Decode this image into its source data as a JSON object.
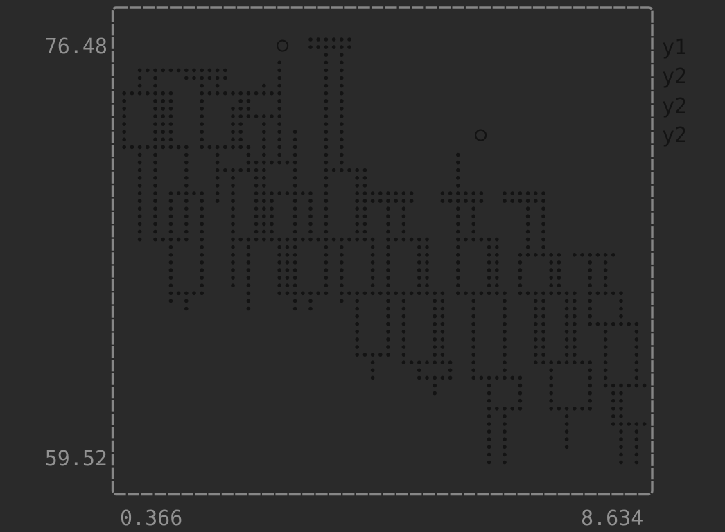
{
  "figure": {
    "background": "#2a2a2a",
    "border_color": "#868686",
    "label_color": "#919191",
    "dot_color": "#131313"
  },
  "axis": {
    "y_top_label": "76.48",
    "y_bottom_label": "59.52",
    "x_left_label": "0.366",
    "x_right_label": "8.634"
  },
  "legend": {
    "items": [
      {
        "label": "y1"
      },
      {
        "label": "y2"
      },
      {
        "label": "y2"
      },
      {
        "label": "y2"
      }
    ]
  },
  "chart_data": {
    "type": "candlestick",
    "title": "",
    "xlabel": "",
    "ylabel": "",
    "xlim": [
      0.366,
      8.634
    ],
    "ylim": [
      59.52,
      76.48
    ],
    "x_tick_labels": [
      "0.366",
      "8.634"
    ],
    "y_tick_labels": [
      "76.48",
      "59.52"
    ],
    "legend_entries": [
      "y1",
      "y2",
      "y2",
      "y2"
    ],
    "grid": false,
    "legend_position": "right-outside",
    "style": "terminal-dot-matrix",
    "series": [
      {
        "name": "y1",
        "dx": -0.33,
        "half": 0.28,
        "candles": [
          {
            "x": 1.15,
            "o": 74.5,
            "c": 72.4,
            "h": 75.5,
            "l": 68.5
          },
          {
            "x": 2.1,
            "o": 75.4,
            "c": 75.2,
            "h": 75.5,
            "l": 72.4
          },
          {
            "x": 3.0,
            "o": 74.6,
            "c": 73.4,
            "h": 74.9,
            "l": 71.5
          },
          {
            "x": 4.0,
            "o": 76.6,
            "c": 76.4,
            "h": 76.7,
            "l": 71.2
          },
          {
            "x": 4.95,
            "o": 70.3,
            "c": 70.1,
            "h": 70.4,
            "l": 68.5
          },
          {
            "x": 6.0,
            "o": 70.3,
            "c": 70.1,
            "h": 72.1,
            "l": 68.5
          },
          {
            "x": 7.0,
            "o": 70.3,
            "c": 70.1,
            "h": 70.4,
            "l": 68.0
          },
          {
            "x": 8.0,
            "o": 67.9,
            "c": 67.7,
            "h": 68.0,
            "l": 66.4
          }
        ]
      },
      {
        "name": "y2",
        "dx": -0.11,
        "half": 0.28,
        "candles": [
          {
            "x": 1.15,
            "o": 75.5,
            "c": 75.3,
            "h": 75.6,
            "l": 72.4
          },
          {
            "x": 2.1,
            "o": 74.5,
            "c": 72.4,
            "h": 75.4,
            "l": 70.0
          },
          {
            "x": 3.0,
            "o": 71.5,
            "c": 68.5,
            "h": 75.7,
            "l": 66.4
          },
          {
            "x": 4.0,
            "o": 71.2,
            "c": 68.4,
            "h": 76.4,
            "l": 66.0
          },
          {
            "x": 4.95,
            "o": 68.5,
            "c": 66.4,
            "h": 70.3,
            "l": 64.0
          },
          {
            "x": 6.0,
            "o": 68.5,
            "c": 66.4,
            "h": 70.3,
            "l": 62.7
          },
          {
            "x": 7.0,
            "o": 68.0,
            "c": 66.4,
            "h": 70.3,
            "l": 63.5
          },
          {
            "x": 8.0,
            "o": 66.4,
            "c": 64.9,
            "h": 67.9,
            "l": 62.5
          }
        ]
      },
      {
        "name": "y2",
        "dx": 0.11,
        "half": 0.28,
        "candles": [
          {
            "x": 1.15,
            "o": 72.4,
            "c": 68.5,
            "h": 74.5,
            "l": 65.8
          },
          {
            "x": 2.1,
            "o": 72.4,
            "c": 71.2,
            "h": 74.0,
            "l": 66.5
          },
          {
            "x": 3.0,
            "o": 70.3,
            "c": 68.5,
            "h": 73.0,
            "l": 65.7
          },
          {
            "x": 4.0,
            "o": 68.4,
            "c": 66.3,
            "h": 71.2,
            "l": 63.6
          },
          {
            "x": 4.95,
            "o": 66.4,
            "c": 63.5,
            "h": 68.5,
            "l": 62.7
          },
          {
            "x": 6.0,
            "o": 66.4,
            "c": 62.7,
            "h": 68.5,
            "l": 59.4
          },
          {
            "x": 7.0,
            "o": 66.4,
            "c": 63.5,
            "h": 68.0,
            "l": 61.5
          },
          {
            "x": 8.0,
            "o": 64.9,
            "c": 62.5,
            "h": 66.4,
            "l": 59.3
          }
        ]
      },
      {
        "name": "y2",
        "dx": 0.33,
        "half": 0.28,
        "candles": [
          {
            "x": 1.15,
            "o": 70.3,
            "c": 66.4,
            "h": 72.4,
            "l": 65.7
          },
          {
            "x": 2.1,
            "o": 71.2,
            "c": 68.5,
            "h": 72.4,
            "l": 65.7
          },
          {
            "x": 3.0,
            "o": 68.5,
            "c": 66.4,
            "h": 70.3,
            "l": 65.7
          },
          {
            "x": 4.0,
            "o": 66.3,
            "c": 63.6,
            "h": 68.4,
            "l": 62.9
          },
          {
            "x": 4.95,
            "o": 63.5,
            "c": 62.7,
            "h": 66.4,
            "l": 62.0
          },
          {
            "x": 6.0,
            "o": 62.7,
            "c": 61.5,
            "h": 66.4,
            "l": 59.4
          },
          {
            "x": 7.0,
            "o": 63.5,
            "c": 61.5,
            "h": 66.4,
            "l": 60.0
          },
          {
            "x": 8.0,
            "o": 62.5,
            "c": 61.0,
            "h": 64.9,
            "l": 59.3
          }
        ]
      }
    ],
    "outliers": [
      {
        "x": 2.96,
        "y": 76.45
      },
      {
        "x": 5.98,
        "y": 72.77
      }
    ]
  }
}
